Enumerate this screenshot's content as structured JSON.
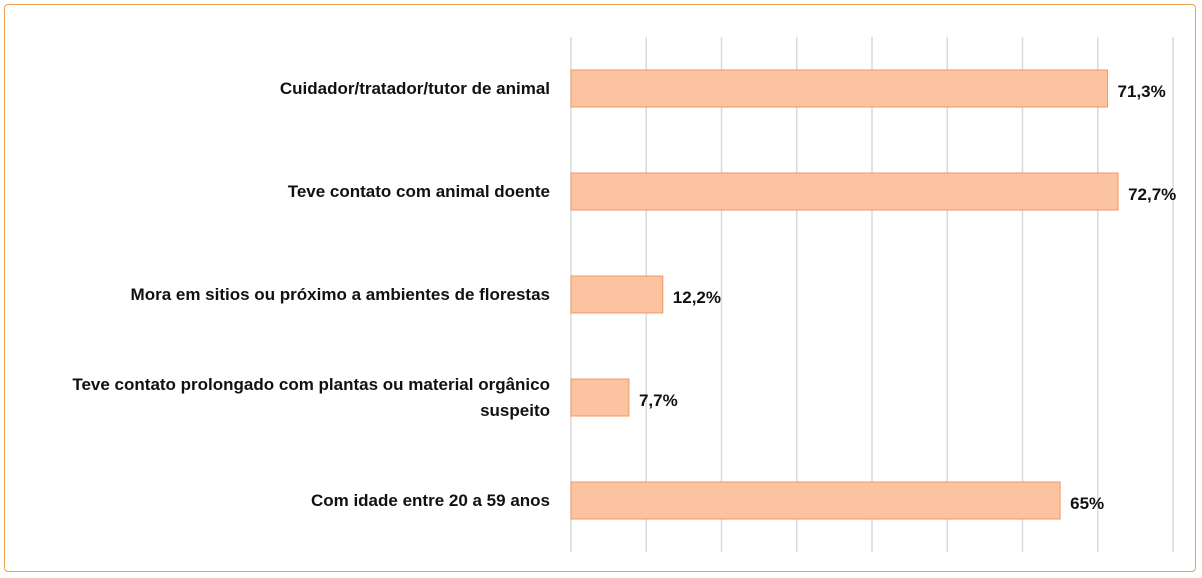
{
  "chart_data": {
    "type": "hbar",
    "categories": [
      "Cuidador/tratador/tutor de animal",
      "Teve contato com animal doente",
      "Mora em sitios ou próximo  a ambientes de florestas",
      "Teve contato prolongado com plantas ou material orgânico suspeito",
      "Com idade entre 20 a 59 anos"
    ],
    "values": [
      71.3,
      72.7,
      12.2,
      7.7,
      65
    ],
    "value_labels": [
      "71,3%",
      "72,7%",
      "12,2%",
      "7,7%",
      "65%"
    ],
    "color": "#fbc3a0",
    "xlim": [
      0,
      80
    ],
    "xticks": [
      0,
      10,
      20,
      30,
      40,
      50,
      60,
      70,
      80
    ],
    "grid": true
  }
}
